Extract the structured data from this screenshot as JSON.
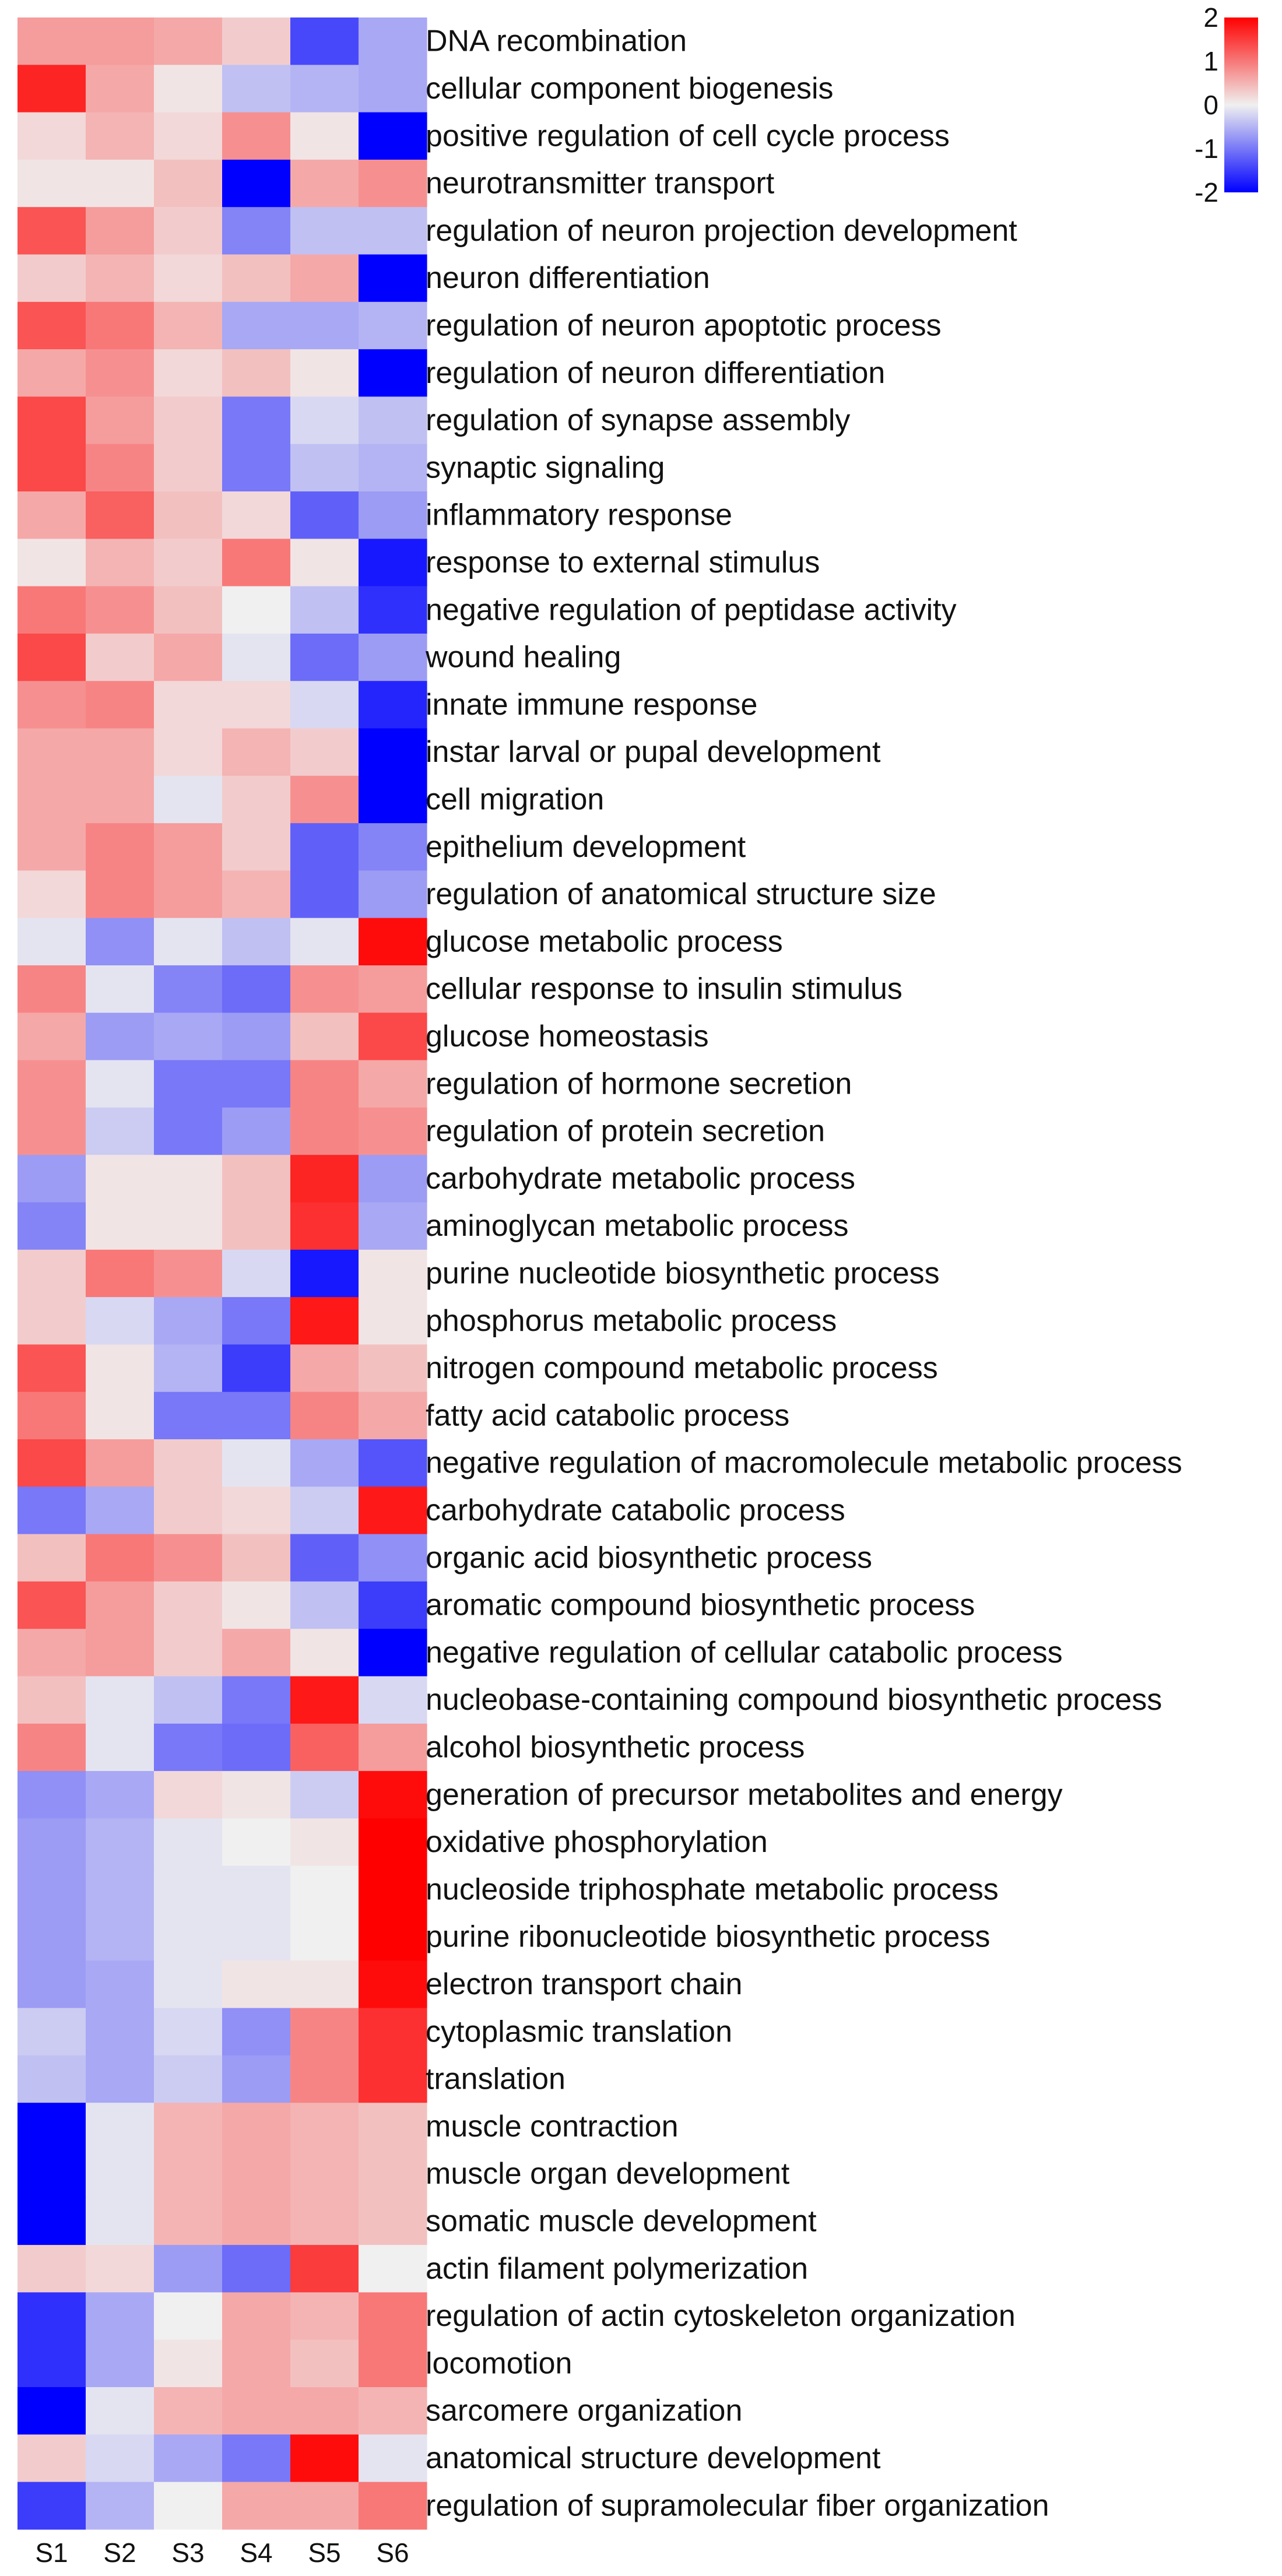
{
  "chart_data": {
    "type": "heatmap",
    "title": "",
    "xlabel": "",
    "ylabel": "",
    "columns": [
      "S1",
      "S2",
      "S3",
      "S4",
      "S5",
      "S6"
    ],
    "rows": [
      "DNA recombination",
      "cellular component biogenesis",
      "positive regulation of cell cycle process",
      "neurotransmitter transport",
      "regulation of neuron projection development",
      "neuron differentiation",
      "regulation of neuron apoptotic process",
      "regulation of neuron differentiation",
      "regulation of synapse assembly",
      "synaptic signaling",
      "inflammatory response",
      "response to external stimulus",
      "negative regulation of peptidase activity",
      "wound healing",
      "innate immune response",
      "instar larval or pupal development",
      "cell migration",
      "epithelium development",
      "regulation of anatomical structure size",
      "glucose metabolic process",
      "cellular response to insulin stimulus",
      "glucose homeostasis",
      "regulation of hormone secretion",
      "regulation of protein secretion",
      "carbohydrate metabolic process",
      "aminoglycan metabolic process",
      "purine nucleotide biosynthetic process",
      "phosphorus metabolic process",
      "nitrogen compound metabolic process",
      "fatty acid catabolic process",
      "negative regulation of macromolecule metabolic process",
      "carbohydrate catabolic process",
      "organic acid biosynthetic process",
      "aromatic compound biosynthetic process",
      "negative regulation of cellular catabolic process",
      "nucleobase-containing compound biosynthetic process",
      "alcohol biosynthetic process",
      "generation of precursor metabolites and energy",
      "oxidative phosphorylation",
      "nucleoside triphosphate metabolic process",
      "purine ribonucleotide biosynthetic process",
      "electron transport chain",
      "cytoplasmic translation",
      "translation",
      "muscle contraction",
      "muscle organ development",
      "somatic muscle development",
      "actin filament polymerization",
      "regulation of actin cytoskeleton organization",
      "locomotion",
      "sarcomere organization",
      "anatomical structure development",
      "regulation of supramolecular fiber organization"
    ],
    "values": [
      [
        0.7,
        0.7,
        0.6,
        0.3,
        -1.4,
        -0.6
      ],
      [
        1.7,
        0.6,
        0.1,
        -0.4,
        -0.5,
        -0.6
      ],
      [
        0.2,
        0.5,
        0.2,
        0.8,
        0.1,
        -2.0
      ],
      [
        0.1,
        0.1,
        0.4,
        -2.0,
        0.6,
        0.8
      ],
      [
        1.3,
        0.7,
        0.3,
        -0.9,
        -0.4,
        -0.4
      ],
      [
        0.3,
        0.5,
        0.2,
        0.4,
        0.6,
        -2.0
      ],
      [
        1.3,
        1.0,
        0.5,
        -0.6,
        -0.6,
        -0.5
      ],
      [
        0.6,
        0.8,
        0.2,
        0.4,
        0.1,
        -2.0
      ],
      [
        1.4,
        0.7,
        0.3,
        -1.0,
        -0.2,
        -0.4
      ],
      [
        1.4,
        0.9,
        0.3,
        -1.0,
        -0.4,
        -0.5
      ],
      [
        0.6,
        1.2,
        0.4,
        0.2,
        -1.2,
        -0.7
      ],
      [
        0.1,
        0.5,
        0.3,
        1.0,
        0.1,
        -1.8
      ],
      [
        1.0,
        0.8,
        0.4,
        0.0,
        -0.4,
        -1.6
      ],
      [
        1.4,
        0.3,
        0.6,
        -0.1,
        -1.1,
        -0.7
      ],
      [
        0.8,
        0.9,
        0.2,
        0.2,
        -0.2,
        -1.7
      ],
      [
        0.6,
        0.6,
        0.2,
        0.5,
        0.3,
        -2.0
      ],
      [
        0.6,
        0.6,
        -0.1,
        0.3,
        0.8,
        -2.0
      ],
      [
        0.6,
        0.9,
        0.7,
        0.3,
        -1.2,
        -0.9
      ],
      [
        0.2,
        0.9,
        0.7,
        0.5,
        -1.2,
        -0.7
      ],
      [
        -0.1,
        -0.8,
        -0.1,
        -0.4,
        -0.1,
        1.9
      ],
      [
        0.9,
        -0.1,
        -0.9,
        -1.1,
        0.8,
        0.7
      ],
      [
        0.6,
        -0.7,
        -0.6,
        -0.7,
        0.4,
        1.4
      ],
      [
        0.8,
        -0.1,
        -1.0,
        -1.0,
        0.9,
        0.6
      ],
      [
        0.8,
        -0.3,
        -1.0,
        -0.7,
        0.9,
        0.8
      ],
      [
        -0.7,
        0.1,
        0.1,
        0.4,
        1.7,
        -0.7
      ],
      [
        -0.9,
        0.1,
        0.1,
        0.4,
        1.6,
        -0.6
      ],
      [
        0.3,
        1.0,
        0.8,
        -0.2,
        -1.8,
        0.1
      ],
      [
        0.3,
        -0.2,
        -0.6,
        -1.0,
        1.8,
        0.1
      ],
      [
        1.3,
        0.1,
        -0.5,
        -1.5,
        0.6,
        0.4
      ],
      [
        1.0,
        0.1,
        -1.0,
        -1.0,
        0.9,
        0.6
      ],
      [
        1.4,
        0.7,
        0.3,
        -0.1,
        -0.6,
        -1.3
      ],
      [
        -1.0,
        -0.6,
        0.3,
        0.2,
        -0.3,
        1.8
      ],
      [
        0.4,
        1.0,
        0.8,
        0.4,
        -1.2,
        -0.8
      ],
      [
        1.3,
        0.7,
        0.3,
        0.1,
        -0.4,
        -1.5
      ],
      [
        0.6,
        0.7,
        0.3,
        0.6,
        0.1,
        -2.0
      ],
      [
        0.4,
        -0.1,
        -0.4,
        -1.0,
        1.8,
        -0.2
      ],
      [
        0.9,
        -0.1,
        -1.0,
        -1.1,
        1.2,
        0.7
      ],
      [
        -0.8,
        -0.6,
        0.2,
        0.1,
        -0.3,
        1.9
      ],
      [
        -0.7,
        -0.5,
        -0.1,
        0.0,
        0.1,
        2.0
      ],
      [
        -0.7,
        -0.5,
        -0.1,
        -0.1,
        0.0,
        2.0
      ],
      [
        -0.7,
        -0.5,
        -0.1,
        -0.1,
        0.0,
        2.0
      ],
      [
        -0.7,
        -0.6,
        -0.1,
        0.1,
        0.1,
        1.9
      ],
      [
        -0.3,
        -0.6,
        -0.2,
        -0.8,
        0.9,
        1.6
      ],
      [
        -0.4,
        -0.6,
        -0.3,
        -0.7,
        0.9,
        1.6
      ],
      [
        -2.0,
        -0.1,
        0.5,
        0.6,
        0.5,
        0.4
      ],
      [
        -2.0,
        -0.1,
        0.5,
        0.6,
        0.5,
        0.4
      ],
      [
        -2.0,
        -0.1,
        0.5,
        0.6,
        0.5,
        0.4
      ],
      [
        0.3,
        0.2,
        -0.7,
        -1.1,
        1.5,
        0.0
      ],
      [
        -1.6,
        -0.6,
        0.0,
        0.6,
        0.5,
        1.0
      ],
      [
        -1.6,
        -0.6,
        0.1,
        0.6,
        0.4,
        1.0
      ],
      [
        -2.0,
        -0.1,
        0.5,
        0.6,
        0.6,
        0.5
      ],
      [
        0.3,
        -0.2,
        -0.6,
        -1.0,
        1.9,
        -0.1
      ],
      [
        -1.5,
        -0.5,
        0.0,
        0.6,
        0.6,
        1.0
      ]
    ],
    "colorscale": {
      "low": "#0000ff",
      "mid": "#f0f0f0",
      "high": "#ff0000",
      "min": -2,
      "max": 2
    },
    "legend": {
      "ticks": [
        "2",
        "1",
        "0",
        "-1",
        "-2"
      ],
      "tick_values": [
        2,
        1,
        0,
        -1,
        -2
      ],
      "placement": "top-right"
    },
    "grid": false
  }
}
